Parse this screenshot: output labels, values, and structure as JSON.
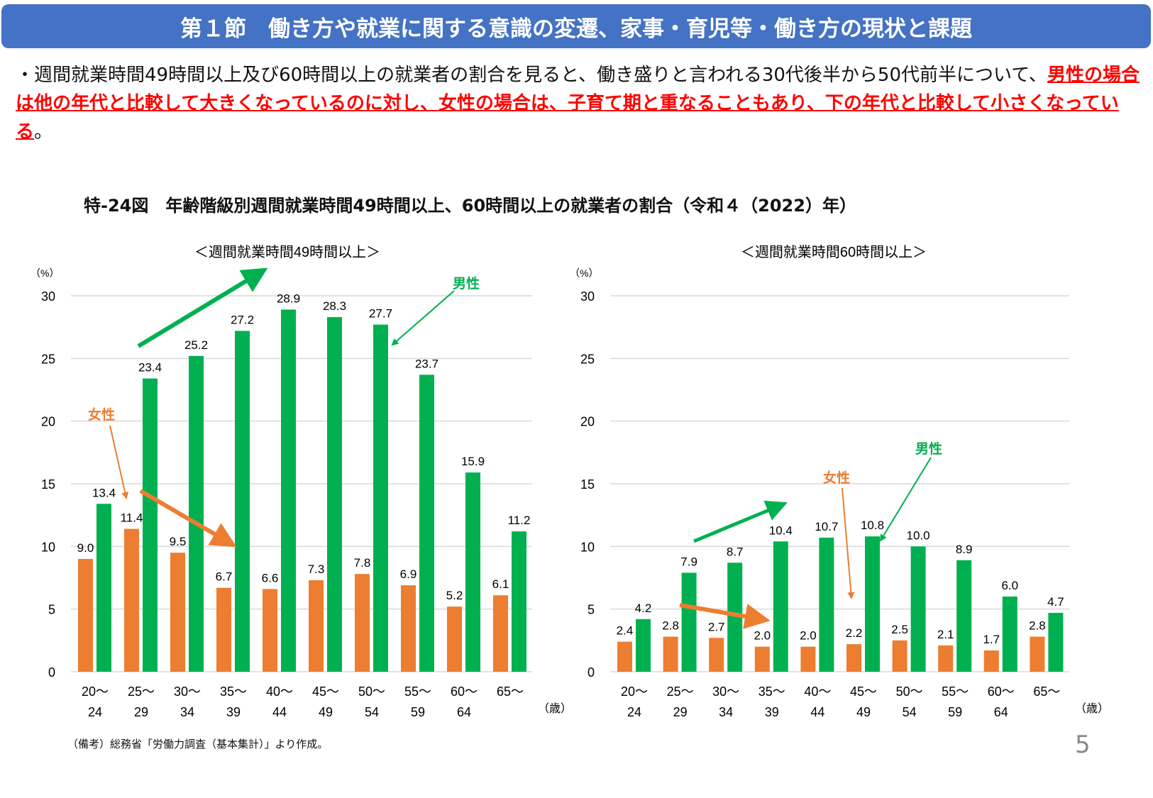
{
  "header": {
    "title": "第１節　働き方や就業に関する意識の変遷、家事・育児等・働き方の現状と課題"
  },
  "body": {
    "bullet": "・",
    "text_plain": "週間就業時間49時間以上及び60時間以上の就業者の割合を見ると、働き盛りと言われる30代後半から50代前半について、",
    "text_emphasis": "男性の場合は他の年代と比較して大きくなっているのに対し、女性の場合は、子育て期と重なることもあり、下の年代と比較して小さくなっている",
    "text_end": "。"
  },
  "figure_title": "特-24図　年齢階級別週間就業時間49時間以上、60時間以上の就業者の割合（令和４（2022）年）",
  "note": "（備考）総務省「労働力調査（基本集計）」より作成。",
  "page_number": "5",
  "colors": {
    "header": "#4472c4",
    "female": "#ed7d31",
    "male": "#00b050",
    "emphasis": "#ff0000"
  },
  "chart_data": [
    {
      "type": "bar",
      "title": "＜週間就業時間49時間以上＞",
      "ylabel": "（%）",
      "xlabel": "（歳）",
      "ylim": [
        0,
        30
      ],
      "yticks": [
        "0",
        "5",
        "10",
        "15",
        "20",
        "25",
        "30"
      ],
      "grid": true,
      "categories": [
        [
          "20～",
          "24"
        ],
        [
          "25～",
          "29"
        ],
        [
          "30～",
          "34"
        ],
        [
          "35～",
          "39"
        ],
        [
          "40～",
          "44"
        ],
        [
          "45～",
          "49"
        ],
        [
          "50～",
          "54"
        ],
        [
          "55～",
          "59"
        ],
        [
          "60～",
          "64"
        ],
        [
          "65～",
          ""
        ]
      ],
      "series": [
        {
          "name": "女性",
          "color": "#ed7d31",
          "values": [
            9.0,
            11.4,
            9.5,
            6.7,
            6.6,
            7.3,
            7.8,
            6.9,
            5.2,
            6.1
          ],
          "labels": [
            "9.0",
            "11.4",
            "9.5",
            "6.7",
            "6.6",
            "7.3",
            "7.8",
            "6.9",
            "5.2",
            "6.1"
          ]
        },
        {
          "name": "男性",
          "color": "#00b050",
          "values": [
            13.4,
            23.4,
            25.2,
            27.2,
            28.9,
            28.3,
            27.7,
            23.7,
            15.9,
            11.2
          ],
          "labels": [
            "13.4",
            "23.4",
            "25.2",
            "27.2",
            "28.9",
            "28.3",
            "27.7",
            "23.7",
            "15.9",
            "11.2"
          ]
        }
      ]
    },
    {
      "type": "bar",
      "title": "＜週間就業時間60時間以上＞",
      "ylabel": "（%）",
      "xlabel": "（歳）",
      "ylim": [
        0,
        30
      ],
      "yticks": [
        "0",
        "5",
        "10",
        "15",
        "20",
        "25",
        "30"
      ],
      "grid": true,
      "categories": [
        [
          "20～",
          "24"
        ],
        [
          "25～",
          "29"
        ],
        [
          "30～",
          "34"
        ],
        [
          "35～",
          "39"
        ],
        [
          "40～",
          "44"
        ],
        [
          "45～",
          "49"
        ],
        [
          "50～",
          "54"
        ],
        [
          "55～",
          "59"
        ],
        [
          "60～",
          "64"
        ],
        [
          "65～",
          ""
        ]
      ],
      "series": [
        {
          "name": "女性",
          "color": "#ed7d31",
          "values": [
            2.4,
            2.8,
            2.7,
            2.0,
            2.0,
            2.2,
            2.5,
            2.1,
            1.7,
            2.8
          ],
          "labels": [
            "2.4",
            "2.8",
            "2.7",
            "2.0",
            "2.0",
            "2.2",
            "2.5",
            "2.1",
            "1.7",
            "2.8"
          ]
        },
        {
          "name": "男性",
          "color": "#00b050",
          "values": [
            4.2,
            7.9,
            8.7,
            10.4,
            10.7,
            10.8,
            10.0,
            8.9,
            6.0,
            4.7
          ],
          "labels": [
            "4.2",
            "7.9",
            "8.7",
            "10.4",
            "10.7",
            "10.8",
            "10.0",
            "8.9",
            "6.0",
            "4.7"
          ]
        }
      ]
    }
  ]
}
